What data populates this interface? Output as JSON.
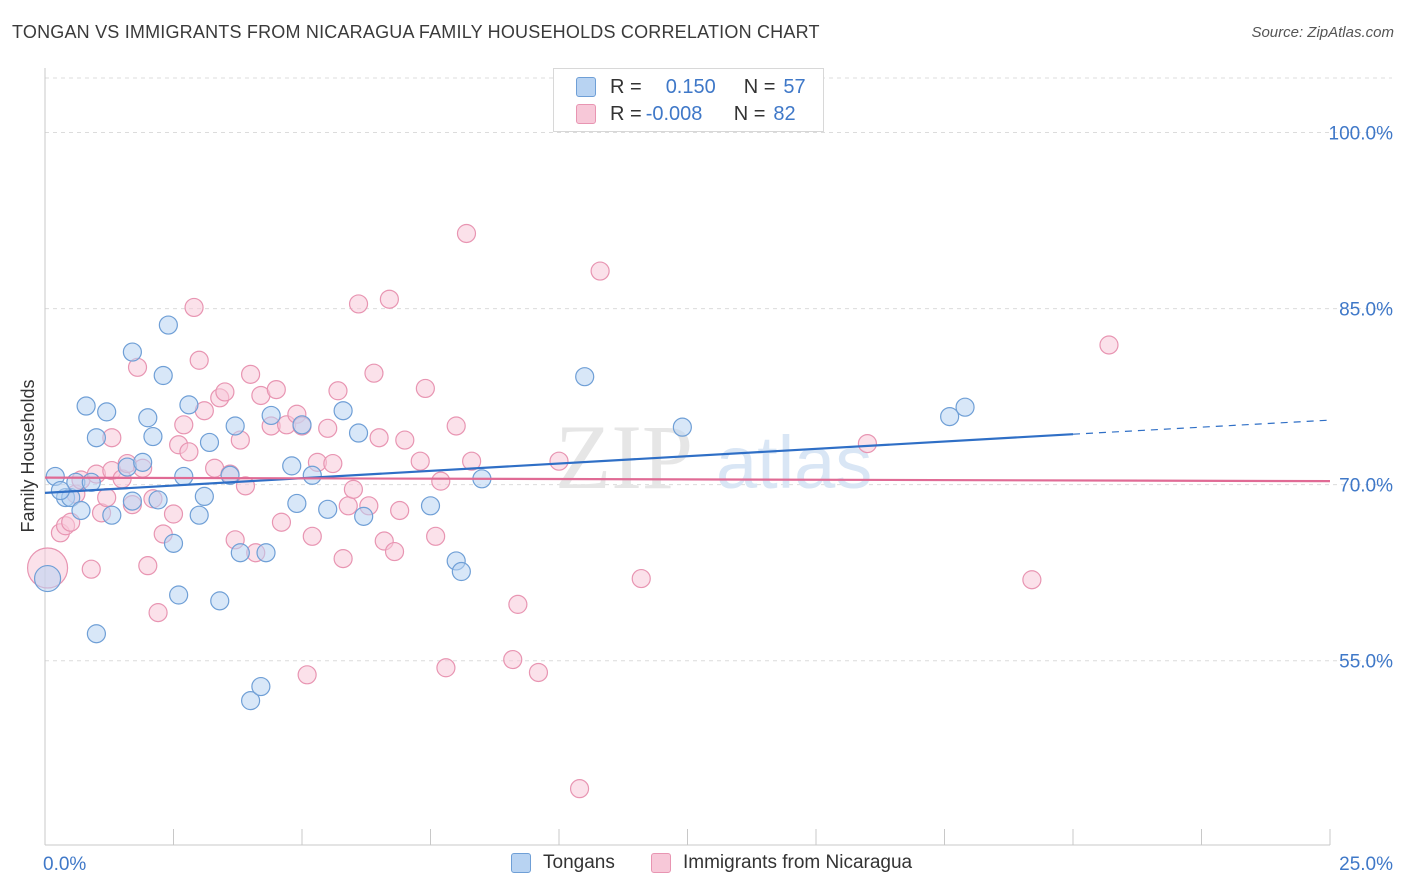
{
  "title": "TONGAN VS IMMIGRANTS FROM NICARAGUA FAMILY HOUSEHOLDS CORRELATION CHART",
  "source": "Source: ZipAtlas.com",
  "watermark": {
    "zip": "ZIP",
    "atlas": "atlas"
  },
  "colors": {
    "blue_fill": "#b8d3f2",
    "blue_stroke": "#6f9fd6",
    "blue_line": "#2f6fc6",
    "pink_fill": "#f7c8d8",
    "pink_stroke": "#e895b2",
    "pink_line": "#e06b95",
    "axis_text": "#3f78c8",
    "grid": "#dcdcdc"
  },
  "legend": {
    "rows": [
      {
        "r_label": "R =",
        "r_value": "0.150",
        "n_label": "N =",
        "n_value": "57"
      },
      {
        "r_label": "R =",
        "r_value": "-0.008",
        "n_label": "N =",
        "n_value": "82"
      }
    ]
  },
  "bottom_legend": {
    "series1": "Tongans",
    "series2": "Immigrants from Nicaragua"
  },
  "chart_data": {
    "type": "scatter",
    "title": "TONGAN VS IMMIGRANTS FROM NICARAGUA FAMILY HOUSEHOLDS CORRELATION CHART",
    "xlabel": "",
    "ylabel": "Family Households",
    "xlim": [
      0,
      25
    ],
    "ylim": [
      39.3,
      105.5
    ],
    "x_tick_labels": [
      "0.0%",
      "25.0%"
    ],
    "y_ticks": [
      55,
      70,
      85,
      100
    ],
    "y_tick_labels": [
      "55.0%",
      "70.0%",
      "85.0%",
      "100.0%"
    ],
    "grid": true,
    "legend_position": "top-center",
    "series": [
      {
        "name": "Tongans",
        "R": 0.15,
        "N": 57,
        "trend": {
          "x0": 0,
          "y0": 69.3,
          "x1": 20,
          "y1": 74.3,
          "dashed_to_x": 25,
          "dashed_to_y": 75.5
        },
        "points": [
          [
            0.05,
            62.0,
            2
          ],
          [
            0.2,
            70.7,
            1
          ],
          [
            0.4,
            68.9,
            1
          ],
          [
            0.5,
            68.9,
            1
          ],
          [
            0.6,
            70.2,
            1
          ],
          [
            0.9,
            70.2,
            1
          ],
          [
            0.8,
            76.7,
            1
          ],
          [
            1.2,
            76.2,
            1
          ],
          [
            1.0,
            74.0,
            1
          ],
          [
            1.3,
            67.4,
            1
          ],
          [
            1.6,
            71.5,
            1
          ],
          [
            1.7,
            68.6,
            1
          ],
          [
            1.7,
            81.3,
            1
          ],
          [
            1.9,
            71.9,
            1
          ],
          [
            2.0,
            75.7,
            1
          ],
          [
            2.1,
            74.1,
            1
          ],
          [
            2.2,
            68.7,
            1
          ],
          [
            2.3,
            79.3,
            1
          ],
          [
            2.4,
            83.6,
            1
          ],
          [
            2.5,
            65.0,
            1
          ],
          [
            2.6,
            60.6,
            1
          ],
          [
            2.7,
            70.7,
            1
          ],
          [
            2.8,
            76.8,
            1
          ],
          [
            3.0,
            67.4,
            1
          ],
          [
            3.1,
            69.0,
            1
          ],
          [
            3.2,
            73.6,
            1
          ],
          [
            3.4,
            60.1,
            1
          ],
          [
            3.6,
            70.8,
            1
          ],
          [
            3.7,
            75.0,
            1
          ],
          [
            3.8,
            64.2,
            1
          ],
          [
            4.0,
            51.6,
            1
          ],
          [
            4.2,
            52.8,
            1
          ],
          [
            4.3,
            64.2,
            1
          ],
          [
            4.4,
            75.9,
            1
          ],
          [
            4.8,
            71.6,
            1
          ],
          [
            4.9,
            68.4,
            1
          ],
          [
            5.0,
            75.1,
            1
          ],
          [
            5.2,
            70.8,
            1
          ],
          [
            5.5,
            67.9,
            1
          ],
          [
            5.8,
            76.3,
            1
          ],
          [
            6.1,
            74.4,
            1
          ],
          [
            6.2,
            67.3,
            1
          ],
          [
            7.5,
            68.2,
            1
          ],
          [
            8.0,
            63.5,
            1
          ],
          [
            8.1,
            62.6,
            1
          ],
          [
            8.5,
            70.5,
            1
          ],
          [
            10.5,
            79.2,
            1
          ],
          [
            12.4,
            74.9,
            1
          ],
          [
            17.6,
            75.8,
            1
          ],
          [
            17.9,
            76.6,
            1
          ],
          [
            1.0,
            57.3,
            1
          ],
          [
            0.7,
            67.8,
            1
          ],
          [
            0.3,
            69.5,
            1
          ]
        ]
      },
      {
        "name": "Immigrants from Nicaragua",
        "R": -0.008,
        "N": 82,
        "trend": {
          "x0": 0,
          "y0": 70.6,
          "x1": 25,
          "y1": 70.3
        },
        "points": [
          [
            0.05,
            62.9,
            2
          ],
          [
            0.3,
            65.9,
            1
          ],
          [
            0.4,
            66.5,
            1
          ],
          [
            0.5,
            66.8,
            1
          ],
          [
            0.6,
            69.2,
            1
          ],
          [
            0.7,
            70.4,
            1
          ],
          [
            0.9,
            62.8,
            1
          ],
          [
            1.0,
            70.9,
            1
          ],
          [
            1.1,
            67.6,
            1
          ],
          [
            1.2,
            68.9,
            1
          ],
          [
            1.3,
            74.0,
            1
          ],
          [
            1.3,
            71.2,
            1
          ],
          [
            1.5,
            70.5,
            1
          ],
          [
            1.6,
            71.8,
            1
          ],
          [
            1.7,
            68.3,
            1
          ],
          [
            1.8,
            80.0,
            1
          ],
          [
            1.9,
            71.4,
            1
          ],
          [
            2.0,
            63.1,
            1
          ],
          [
            2.1,
            68.8,
            1
          ],
          [
            2.2,
            59.1,
            1
          ],
          [
            2.3,
            65.8,
            1
          ],
          [
            2.5,
            67.5,
            1
          ],
          [
            2.6,
            73.4,
            1
          ],
          [
            2.7,
            75.1,
            1
          ],
          [
            2.8,
            72.8,
            1
          ],
          [
            2.9,
            85.1,
            1
          ],
          [
            3.0,
            80.6,
            1
          ],
          [
            3.1,
            76.3,
            1
          ],
          [
            3.3,
            71.4,
            1
          ],
          [
            3.4,
            77.4,
            1
          ],
          [
            3.5,
            77.9,
            1
          ],
          [
            3.6,
            70.9,
            1
          ],
          [
            3.7,
            65.3,
            1
          ],
          [
            3.8,
            73.8,
            1
          ],
          [
            3.9,
            69.9,
            1
          ],
          [
            4.0,
            79.4,
            1
          ],
          [
            4.1,
            64.2,
            1
          ],
          [
            4.2,
            77.6,
            1
          ],
          [
            4.4,
            75.0,
            1
          ],
          [
            4.5,
            78.1,
            1
          ],
          [
            4.6,
            66.8,
            1
          ],
          [
            4.7,
            75.1,
            1
          ],
          [
            4.9,
            76.0,
            1
          ],
          [
            5.0,
            75.0,
            1
          ],
          [
            5.1,
            53.8,
            1
          ],
          [
            5.2,
            65.6,
            1
          ],
          [
            5.3,
            71.9,
            1
          ],
          [
            5.5,
            74.8,
            1
          ],
          [
            5.6,
            71.8,
            1
          ],
          [
            5.7,
            78.0,
            1
          ],
          [
            5.8,
            63.7,
            1
          ],
          [
            5.9,
            68.2,
            1
          ],
          [
            6.0,
            69.6,
            1
          ],
          [
            6.1,
            85.4,
            1
          ],
          [
            6.3,
            68.2,
            1
          ],
          [
            6.4,
            79.5,
            1
          ],
          [
            6.5,
            74.0,
            1
          ],
          [
            6.6,
            65.2,
            1
          ],
          [
            6.7,
            85.8,
            1
          ],
          [
            6.8,
            64.3,
            1
          ],
          [
            6.9,
            67.8,
            1
          ],
          [
            7.0,
            73.8,
            1
          ],
          [
            7.3,
            72.0,
            1
          ],
          [
            7.4,
            78.2,
            1
          ],
          [
            7.6,
            65.6,
            1
          ],
          [
            7.7,
            70.3,
            1
          ],
          [
            7.8,
            54.4,
            1
          ],
          [
            8.0,
            75.0,
            1
          ],
          [
            8.2,
            91.4,
            1
          ],
          [
            8.3,
            72.0,
            1
          ],
          [
            9.1,
            55.1,
            1
          ],
          [
            9.2,
            59.8,
            1
          ],
          [
            9.6,
            54.0,
            1
          ],
          [
            10.0,
            72.0,
            1
          ],
          [
            10.4,
            44.1,
            1
          ],
          [
            10.8,
            88.2,
            1
          ],
          [
            11.6,
            62.0,
            1
          ],
          [
            16.0,
            73.5,
            1
          ],
          [
            19.2,
            61.9,
            1
          ],
          [
            20.7,
            81.9,
            1
          ]
        ]
      }
    ]
  }
}
